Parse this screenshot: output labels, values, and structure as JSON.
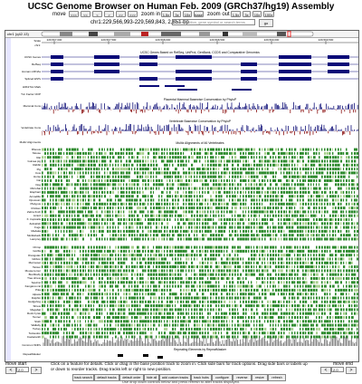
{
  "title": "UCSC Genome Browser on Human Feb. 2009 (GRCh37/hg19) Assembly",
  "nav": {
    "move_label": "move",
    "move_buttons": [
      "<<<",
      "<<",
      "<",
      ">",
      ">>",
      ">>>"
    ],
    "zoom_in_label": "zoom in",
    "zoom_in_buttons": [
      "1.5x",
      "3x",
      "10x",
      "base"
    ],
    "zoom_out_label": "zoom out",
    "zoom_out_buttons": [
      "1.5x",
      "3x",
      "10x",
      "100x"
    ]
  },
  "position": {
    "text": "chr1:229,566,993-229,569,843",
    "size": "2,851 bp",
    "search_placeholder": "enter position, gene symbol or search terms",
    "go_label": "go"
  },
  "ideogram": {
    "chrom": "chr1 (q42.13)"
  },
  "tracks": [
    {
      "id": "scale",
      "label": "Scale"
    },
    {
      "id": "chr1",
      "label": "chr1:"
    },
    {
      "id": "refseq",
      "label": "UCSC Genes"
    },
    {
      "id": "refseq2",
      "label": "RefSeq"
    },
    {
      "id": "human_mrna",
      "label": "Human mRNAs"
    },
    {
      "id": "spliced_est",
      "label": "Spliced ESTs"
    },
    {
      "id": "layered",
      "label": "H3K27Ac Mark"
    },
    {
      "id": "txn",
      "label": "Txn Factor ChIP"
    },
    {
      "id": "mammal_cons",
      "label": "Mammal Cons"
    },
    {
      "id": "vertebrate_cons",
      "label": "Vertebrate Cons"
    },
    {
      "id": "multiz",
      "label": "Multiz Alignments"
    },
    {
      "id": "snp",
      "label": "Common SNPs"
    },
    {
      "id": "rmsk",
      "label": "RepeatMasker"
    }
  ],
  "species_top": [
    "Rhesus",
    "Mouse",
    "Rat",
    "Guinea pig",
    "Rabbit",
    "Pig",
    "Cow",
    "Horse",
    "Cat",
    "Dog",
    "Microbat",
    "Elephant",
    "Armadillo",
    "Opossum",
    "Platypus",
    "Chicken",
    "Zebra finch",
    "Lizard",
    "X. tropicalis",
    "Zebrafish",
    "Fugu",
    "Medaka",
    "Stickleback",
    "Lamprey"
  ],
  "species_bottom": [
    "Chimp",
    "Gorilla",
    "Orangutan",
    "Gibbon",
    "Marmoset",
    "Tarsier",
    "Mouse lemur",
    "Bushbaby",
    "Tree shrew",
    "Squirrel",
    "Kangaroo rat",
    "Pika",
    "Alpaca",
    "Dolphin",
    "Hedgehog",
    "Shrew",
    "Megabat",
    "Rock hyrax",
    "Tenrec",
    "Sloth",
    "Wallaby",
    "Turkey",
    "Tetraodon",
    "Coelacanth"
  ],
  "scale_text": [
    "229,567,000",
    "229,567,500",
    "229,568,000",
    "229,568,500",
    "229,569,000",
    "229,569,500"
  ],
  "track_titles": {
    "genes": "UCSC Genes Based on RefSeq, UniProt, GenBank, CCDS and Comparative Genomics",
    "mammal": "Placental Mammal Basewise Conservation by PhyloP",
    "vert": "Vertebrate Basewise Conservation by PhyloP",
    "multiz": "Multiz Alignments of 46 Vertebrates",
    "repeat": "Repeating Elements by RepeatMasker"
  },
  "colors": {
    "gene": "#0a0a78",
    "cons_pos": "#13137a",
    "cons_neg": "#8b1010",
    "multiz": "#2e8b2e",
    "gray": "#555555"
  },
  "bottom": {
    "move_start": "move start",
    "move_end": "move end",
    "left_arrow": "<",
    "right_arrow": ">",
    "start_value": "2.0",
    "end_value": "2.0",
    "help_text": "Click on a feature for details. Click or drag in the base position track to zoom in. Click side bars for track options. Drag side bars or labels up or down to reorder tracks. Drag tracks left or right to new position.",
    "buttons": [
      "track search",
      "default tracks",
      "default order",
      "hide all",
      "add custom tracks",
      "track hubs",
      "configure",
      "reverse",
      "resize",
      "refresh"
    ],
    "footer": "Use drop down controls below and press refresh to alter tracks displayed."
  }
}
